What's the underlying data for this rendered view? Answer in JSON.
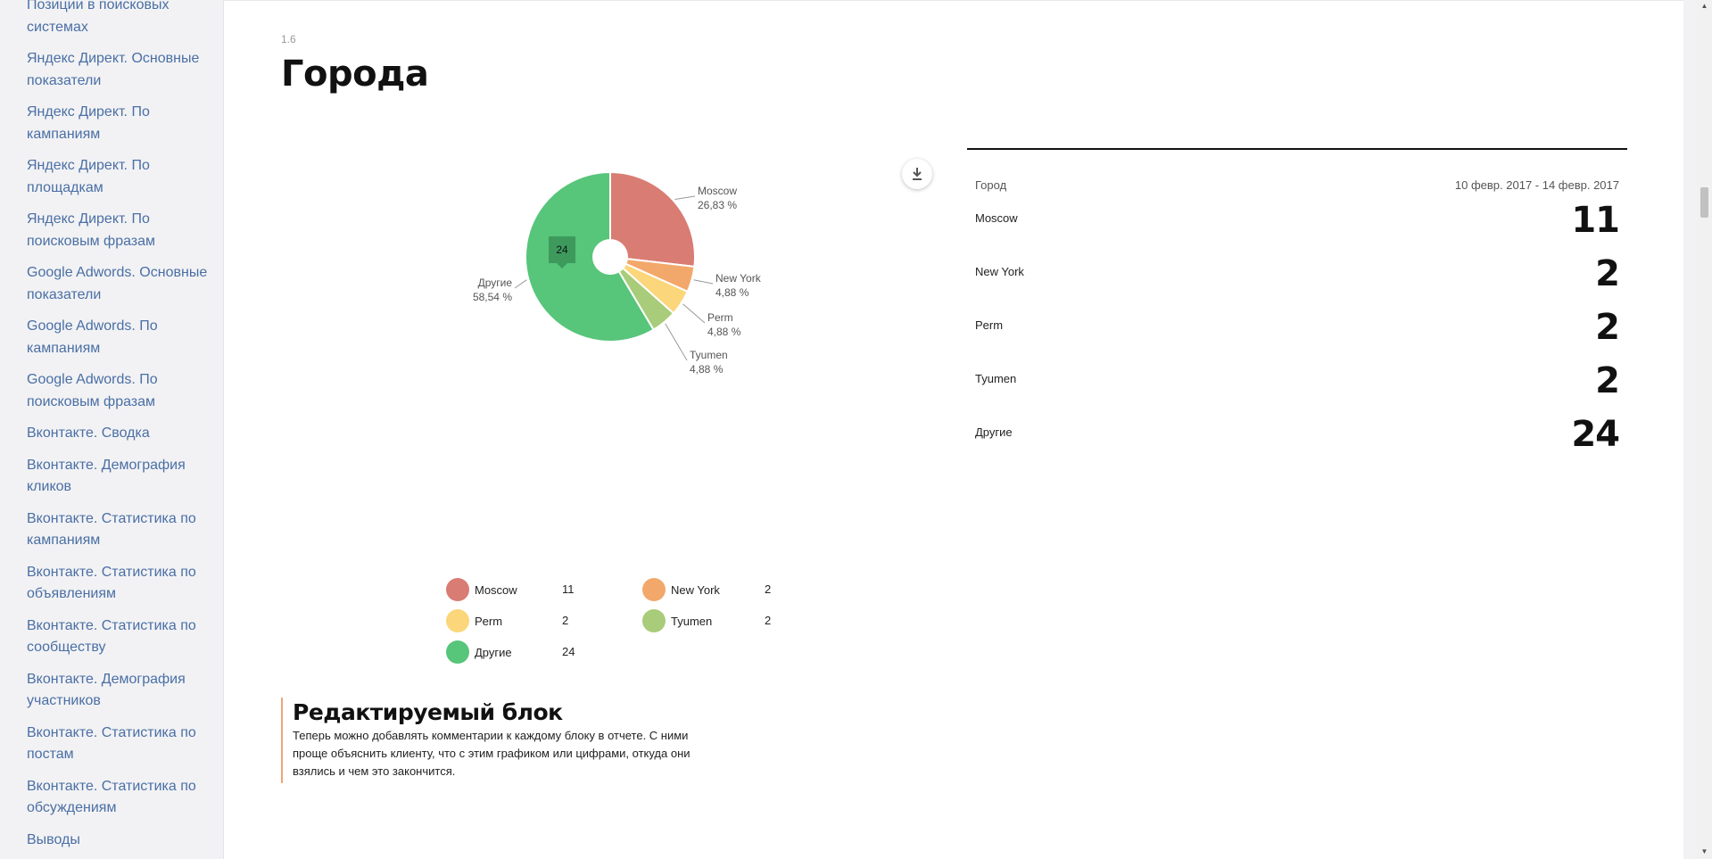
{
  "sidebar": {
    "items": [
      "Позиции в поисковых системах",
      "Яндекс Директ. Основные показатели",
      "Яндекс Директ. По кампаниям",
      "Яндекс Директ. По площадкам",
      "Яндекс Директ. По поисковым фразам",
      "Google Adwords. Основные показатели",
      "Google Adwords. По кампаниям",
      "Google Adwords. По поисковым фразам",
      "Вконтакте. Сводка",
      "Вконтакте. Демография кликов",
      "Вконтакте. Статистика по кампаниям",
      "Вконтакте. Статистика по объявлениям",
      "Вконтакте. Статистика по сообществу",
      "Вконтакте. Демография участников",
      "Вконтакте. Статистика по постам",
      "Вконтакте. Статистика по обсуждениям",
      "Выводы"
    ]
  },
  "section": {
    "number": "1.6",
    "title": "Города"
  },
  "chart_data": {
    "type": "pie",
    "donut_hole": true,
    "tooltip_value": "24",
    "series": [
      {
        "name": "Moscow",
        "value": 11,
        "percent": "26,83 %",
        "color": "#d97c73"
      },
      {
        "name": "New York",
        "value": 2,
        "percent": "4,88 %",
        "color": "#f3a86b"
      },
      {
        "name": "Perm",
        "value": 2,
        "percent": "4,88 %",
        "color": "#fbd67a"
      },
      {
        "name": "Tyumen",
        "value": 2,
        "percent": "4,88 %",
        "color": "#a8cc7a"
      },
      {
        "name": "Другие",
        "value": 24,
        "percent": "58,54 %",
        "color": "#57c57a"
      }
    ]
  },
  "table": {
    "col_city": "Город",
    "col_period": "10 февр. 2017 - 14 февр. 2017",
    "rows": [
      {
        "city": "Moscow",
        "value": "11"
      },
      {
        "city": "New York",
        "value": "2"
      },
      {
        "city": "Perm",
        "value": "2"
      },
      {
        "city": "Tyumen",
        "value": "2"
      },
      {
        "city": "Другие",
        "value": "24"
      }
    ]
  },
  "edit_block": {
    "title": "Редактируемый блок",
    "text": "Теперь можно добавлять комментарии к каждому блоку в отчете. С ними проще объяснить клиенту, что с этим графиком или цифрами, откуда они взялись и чем это закончится."
  },
  "icons": {
    "download": "download-icon"
  }
}
